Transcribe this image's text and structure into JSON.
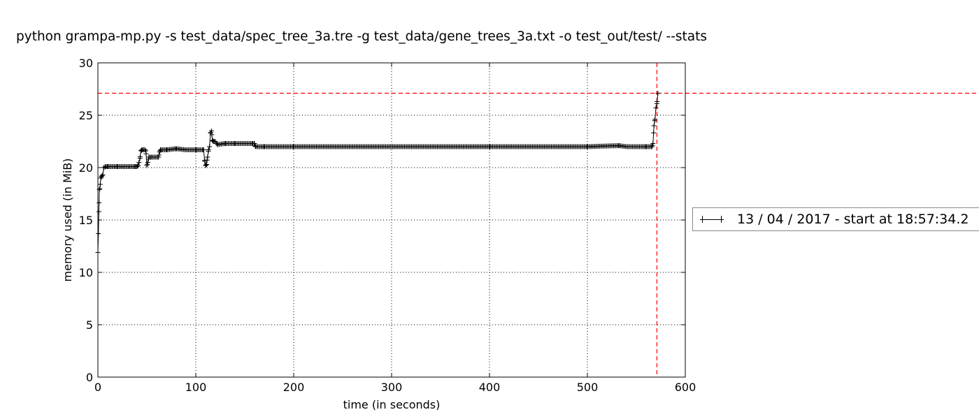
{
  "chart_data": {
    "type": "line",
    "title": "python grampa-mp.py -s test_data/spec_tree_3a.tre -g test_data/gene_trees_3a.txt -o test_out/test/ --stats",
    "xlabel": "time (in seconds)",
    "ylabel": "memory used (in MiB)",
    "xlim": [
      0,
      600
    ],
    "ylim": [
      0,
      30
    ],
    "xticks": [
      0,
      100,
      200,
      300,
      400,
      500,
      600
    ],
    "yticks": [
      0,
      5,
      10,
      15,
      20,
      25,
      30
    ],
    "grid": true,
    "legend_position": "right",
    "series": [
      {
        "name": "13 / 04 / 2017 - start at 18:57:34.2",
        "color": "#000000",
        "marker": "+",
        "points": [
          [
            0,
            11.9
          ],
          [
            0.5,
            13.7
          ],
          [
            1,
            15.8
          ],
          [
            1.5,
            17.9
          ],
          [
            2,
            18.0
          ],
          [
            3,
            19.0
          ],
          [
            4,
            19.2
          ],
          [
            5,
            19.3
          ],
          [
            6,
            20.0
          ],
          [
            8,
            20.1
          ],
          [
            10,
            20.1
          ],
          [
            20,
            20.1
          ],
          [
            30,
            20.1
          ],
          [
            38,
            20.1
          ],
          [
            40,
            20.1
          ],
          [
            41,
            20.2
          ],
          [
            42,
            20.5
          ],
          [
            43,
            20.9
          ],
          [
            44,
            21.6
          ],
          [
            45,
            21.7
          ],
          [
            48,
            21.7
          ],
          [
            49,
            21.6
          ],
          [
            50,
            20.2
          ],
          [
            51,
            20.5
          ],
          [
            52,
            21.0
          ],
          [
            55,
            21.0
          ],
          [
            60,
            21.0
          ],
          [
            62,
            21.0
          ],
          [
            63,
            21.5
          ],
          [
            64,
            21.7
          ],
          [
            70,
            21.7
          ],
          [
            80,
            21.8
          ],
          [
            90,
            21.7
          ],
          [
            100,
            21.7
          ],
          [
            107,
            21.7
          ],
          [
            108,
            21.7
          ],
          [
            109,
            20.7
          ],
          [
            110,
            20.2
          ],
          [
            111,
            20.3
          ],
          [
            112,
            21.0
          ],
          [
            113,
            21.7
          ],
          [
            114,
            22.0
          ],
          [
            115,
            23.3
          ],
          [
            116,
            23.5
          ],
          [
            117,
            22.6
          ],
          [
            118,
            22.5
          ],
          [
            120,
            22.5
          ],
          [
            122,
            22.2
          ],
          [
            130,
            22.3
          ],
          [
            140,
            22.3
          ],
          [
            150,
            22.3
          ],
          [
            158,
            22.3
          ],
          [
            160,
            22.3
          ],
          [
            161,
            22.0
          ],
          [
            170,
            22.0
          ],
          [
            200,
            22.0
          ],
          [
            240,
            22.0
          ],
          [
            300,
            22.0
          ],
          [
            400,
            22.0
          ],
          [
            500,
            22.0
          ],
          [
            532,
            22.1
          ],
          [
            540,
            22.0
          ],
          [
            560,
            22.0
          ],
          [
            566,
            22.0
          ],
          [
            567,
            22.3
          ],
          [
            568,
            24.0
          ],
          [
            569,
            24.6
          ],
          [
            570,
            25.7
          ],
          [
            571,
            26.1
          ],
          [
            572,
            27.1
          ]
        ]
      }
    ],
    "reference_lines": [
      {
        "orientation": "horizontal",
        "value": 27.1,
        "color": "#ff0000",
        "style": "dashed"
      },
      {
        "orientation": "vertical",
        "value": 571,
        "color": "#ff0000",
        "style": "dashed"
      }
    ]
  }
}
